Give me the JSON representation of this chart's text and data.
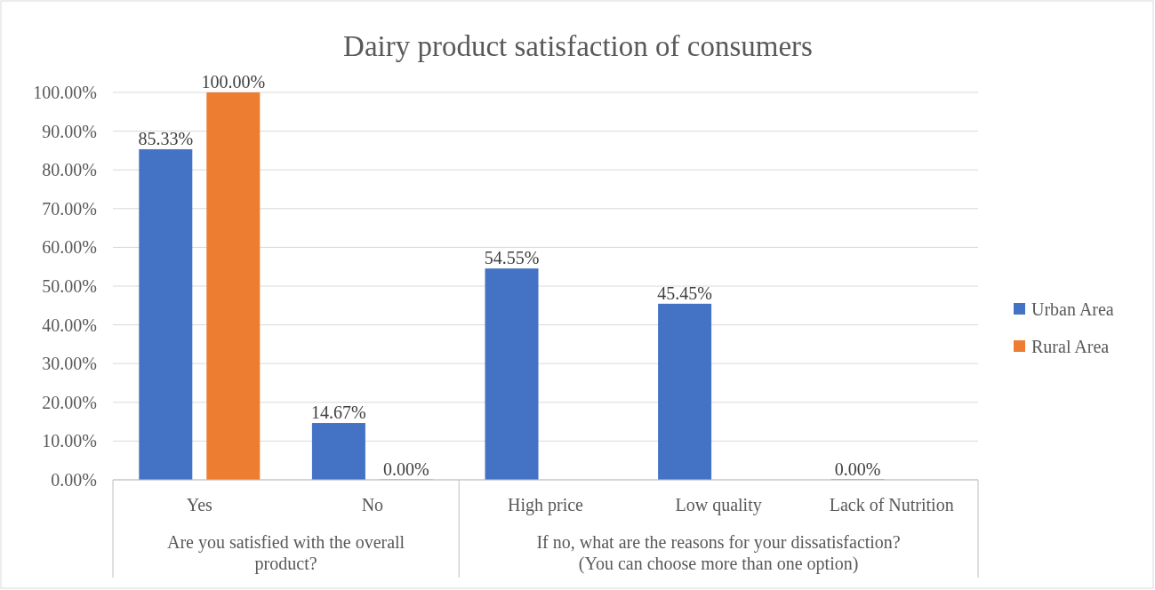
{
  "chart_data": {
    "type": "bar",
    "title": "Dairy product satisfaction of consumers",
    "categories": [
      "Yes",
      "No",
      "High price",
      "Low quality",
      "Lack of Nutrition"
    ],
    "series": [
      {
        "name": "Urban Area",
        "color": "#4472c4",
        "values": [
          85.33,
          14.67,
          54.55,
          45.45,
          0
        ],
        "value_labels": [
          "85.33%",
          "14.67%",
          "54.55%",
          "45.45%",
          "0.00%"
        ]
      },
      {
        "name": "Rural Area",
        "color": "#ed7d31",
        "values": [
          100,
          0,
          null,
          null,
          null
        ],
        "value_labels": [
          "100.00%",
          "0.00%",
          null,
          null,
          null
        ]
      }
    ],
    "annotations": [
      "Are you satisfied with the overall product?",
      "If no, what are the reasons for your dissatisfaction? (You can choose more than one option)"
    ],
    "ylim": [
      0,
      100
    ],
    "yticks": [
      {
        "value": 0,
        "label": "0.00%"
      },
      {
        "value": 10,
        "label": "10.00%"
      },
      {
        "value": 20,
        "label": "20.00%"
      },
      {
        "value": 30,
        "label": "30.00%"
      },
      {
        "value": 40,
        "label": "40.00%"
      },
      {
        "value": 50,
        "label": "50.00%"
      },
      {
        "value": 60,
        "label": "60.00%"
      },
      {
        "value": 70,
        "label": "70.00%"
      },
      {
        "value": 80,
        "label": "80.00%"
      },
      {
        "value": 90,
        "label": "90.00%"
      },
      {
        "value": 100,
        "label": "100.00%"
      }
    ],
    "grid": "y",
    "legend": "right"
  }
}
